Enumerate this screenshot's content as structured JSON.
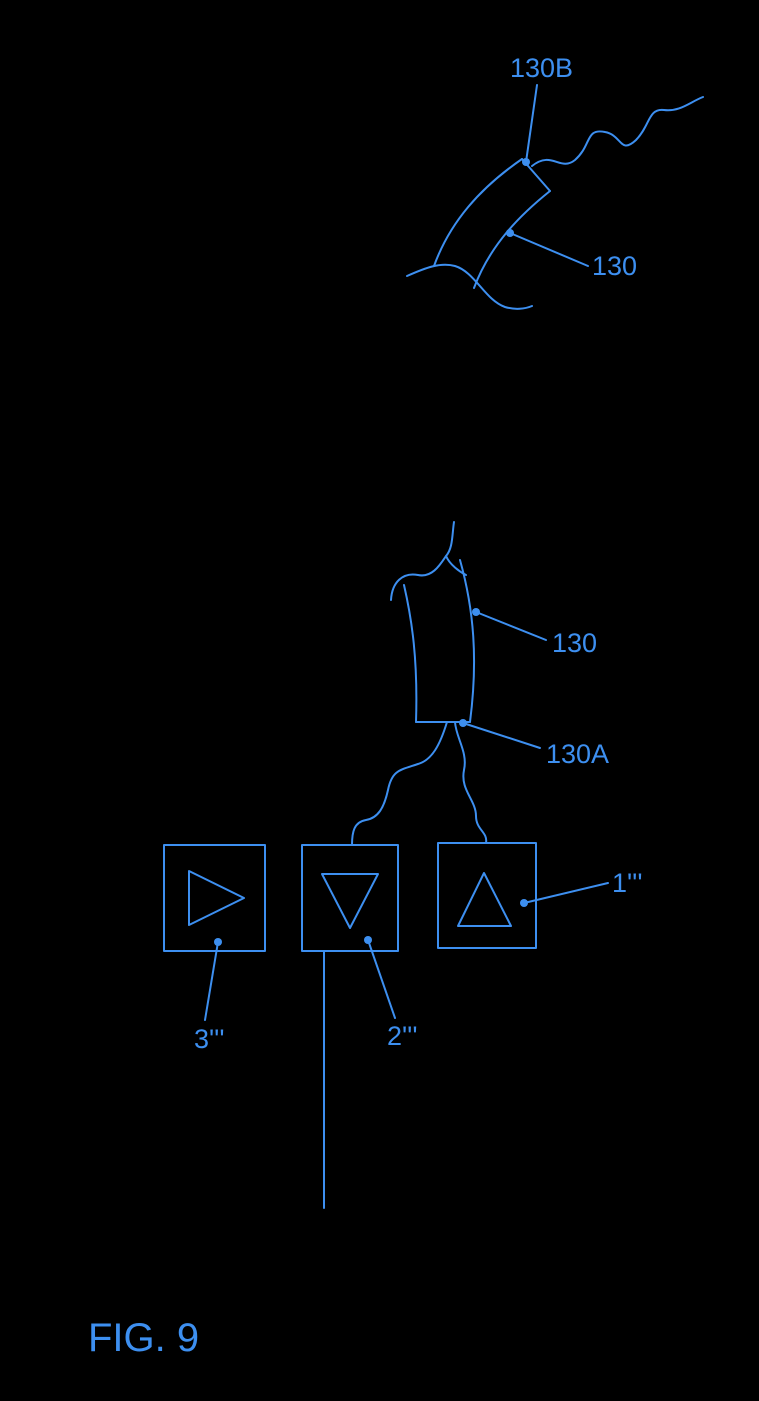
{
  "figure": {
    "caption": "FIG. 9",
    "stroke_color": "#3d8ff0",
    "background_color": "#000000"
  },
  "upper_sensor": {
    "label_end": "130B",
    "label_body": "130"
  },
  "lower_sensor": {
    "label_body": "130",
    "label_end": "130A"
  },
  "units": [
    {
      "label": "3'''",
      "symbol": "triangle-right-icon"
    },
    {
      "label": "2'''",
      "symbol": "triangle-down-icon"
    },
    {
      "label": "1'''",
      "symbol": "triangle-up-icon"
    }
  ]
}
